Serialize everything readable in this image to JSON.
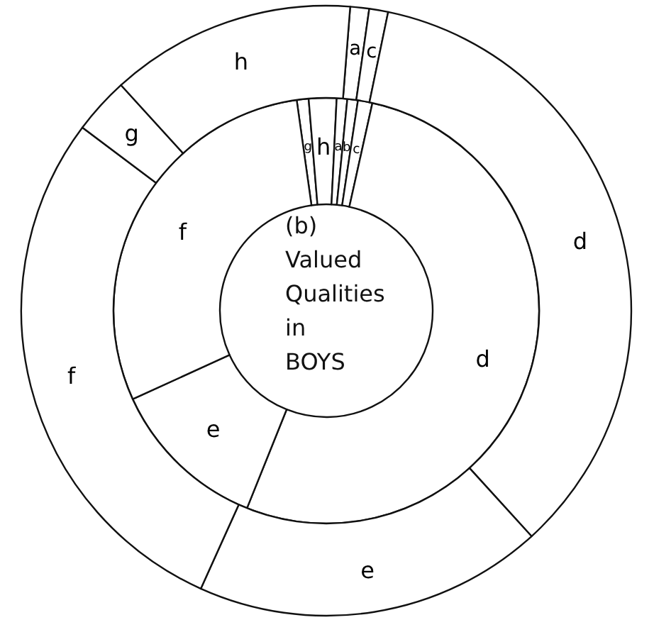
{
  "chart_data": [
    {
      "type": "donut",
      "title": "(b)\nValued\nQualities\nin\nBOYS",
      "categories": [
        "g",
        "h",
        "a",
        "b",
        "c",
        "d",
        "e",
        "f"
      ],
      "values": [
        0.9,
        2.1,
        0.8,
        0.8,
        1.1,
        52.6,
        12.1,
        29.6
      ],
      "colors": [
        "#ffffff",
        "#ffffff",
        "#ffffff",
        "#ffffff",
        "#ffffff",
        "#ffffff",
        "#ffffff",
        "#ffffff"
      ]
    },
    {
      "type": "donut",
      "categories": [
        "a",
        "c",
        "d",
        "e",
        "f",
        "g",
        "h"
      ],
      "values": [
        1,
        1,
        35,
        18.5,
        28.5,
        3,
        13
      ],
      "colors": [
        "#ffffff",
        "#ffffff",
        "#ffffff",
        "#ffffff",
        "#ffffff",
        "#ffffff",
        "#ffffff"
      ]
    }
  ]
}
